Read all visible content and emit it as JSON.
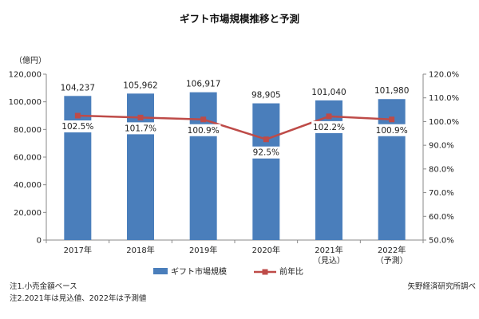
{
  "chart_data": {
    "type": "bar",
    "title": "ギフト市場規模推移と予測",
    "y_unit_label": "（億円）",
    "categories": [
      "2017年",
      "2018年",
      "2019年",
      "2020年",
      "2021年",
      "2022年"
    ],
    "category_sublabels": [
      "",
      "",
      "",
      "",
      "（見込）",
      "（予測）"
    ],
    "y_left_range": [
      0,
      120000
    ],
    "y_left_ticks": [
      "0",
      "20,000",
      "40,000",
      "60,000",
      "80,000",
      "100,000",
      "120,000"
    ],
    "y_right_range": [
      50,
      120
    ],
    "y_right_ticks": [
      "50.0%",
      "60.0%",
      "70.0%",
      "80.0%",
      "90.0%",
      "100.0%",
      "110.0%",
      "120.0%"
    ],
    "series": [
      {
        "name": "ギフト市場規模",
        "kind": "bar",
        "axis": "left",
        "color": "#4a7ebb",
        "values": [
          104237,
          105962,
          106917,
          98905,
          101040,
          101980
        ],
        "labels": [
          "104,237",
          "105,962",
          "106,917",
          "98,905",
          "101,040",
          "101,980"
        ]
      },
      {
        "name": "前年比",
        "kind": "line",
        "axis": "right",
        "color": "#be4b48",
        "values": [
          102.5,
          101.7,
          100.9,
          92.5,
          102.2,
          100.9
        ],
        "labels": [
          "102.5%",
          "101.7%",
          "100.9%",
          "92.5%",
          "102.2%",
          "100.9%"
        ]
      }
    ],
    "grid": false,
    "legend_position": "bottom-center"
  },
  "notes": [
    "注1.小売金額ベース",
    "注2.2021年は見込値、2022年は予測値"
  ],
  "source": "矢野経済研究所調べ"
}
